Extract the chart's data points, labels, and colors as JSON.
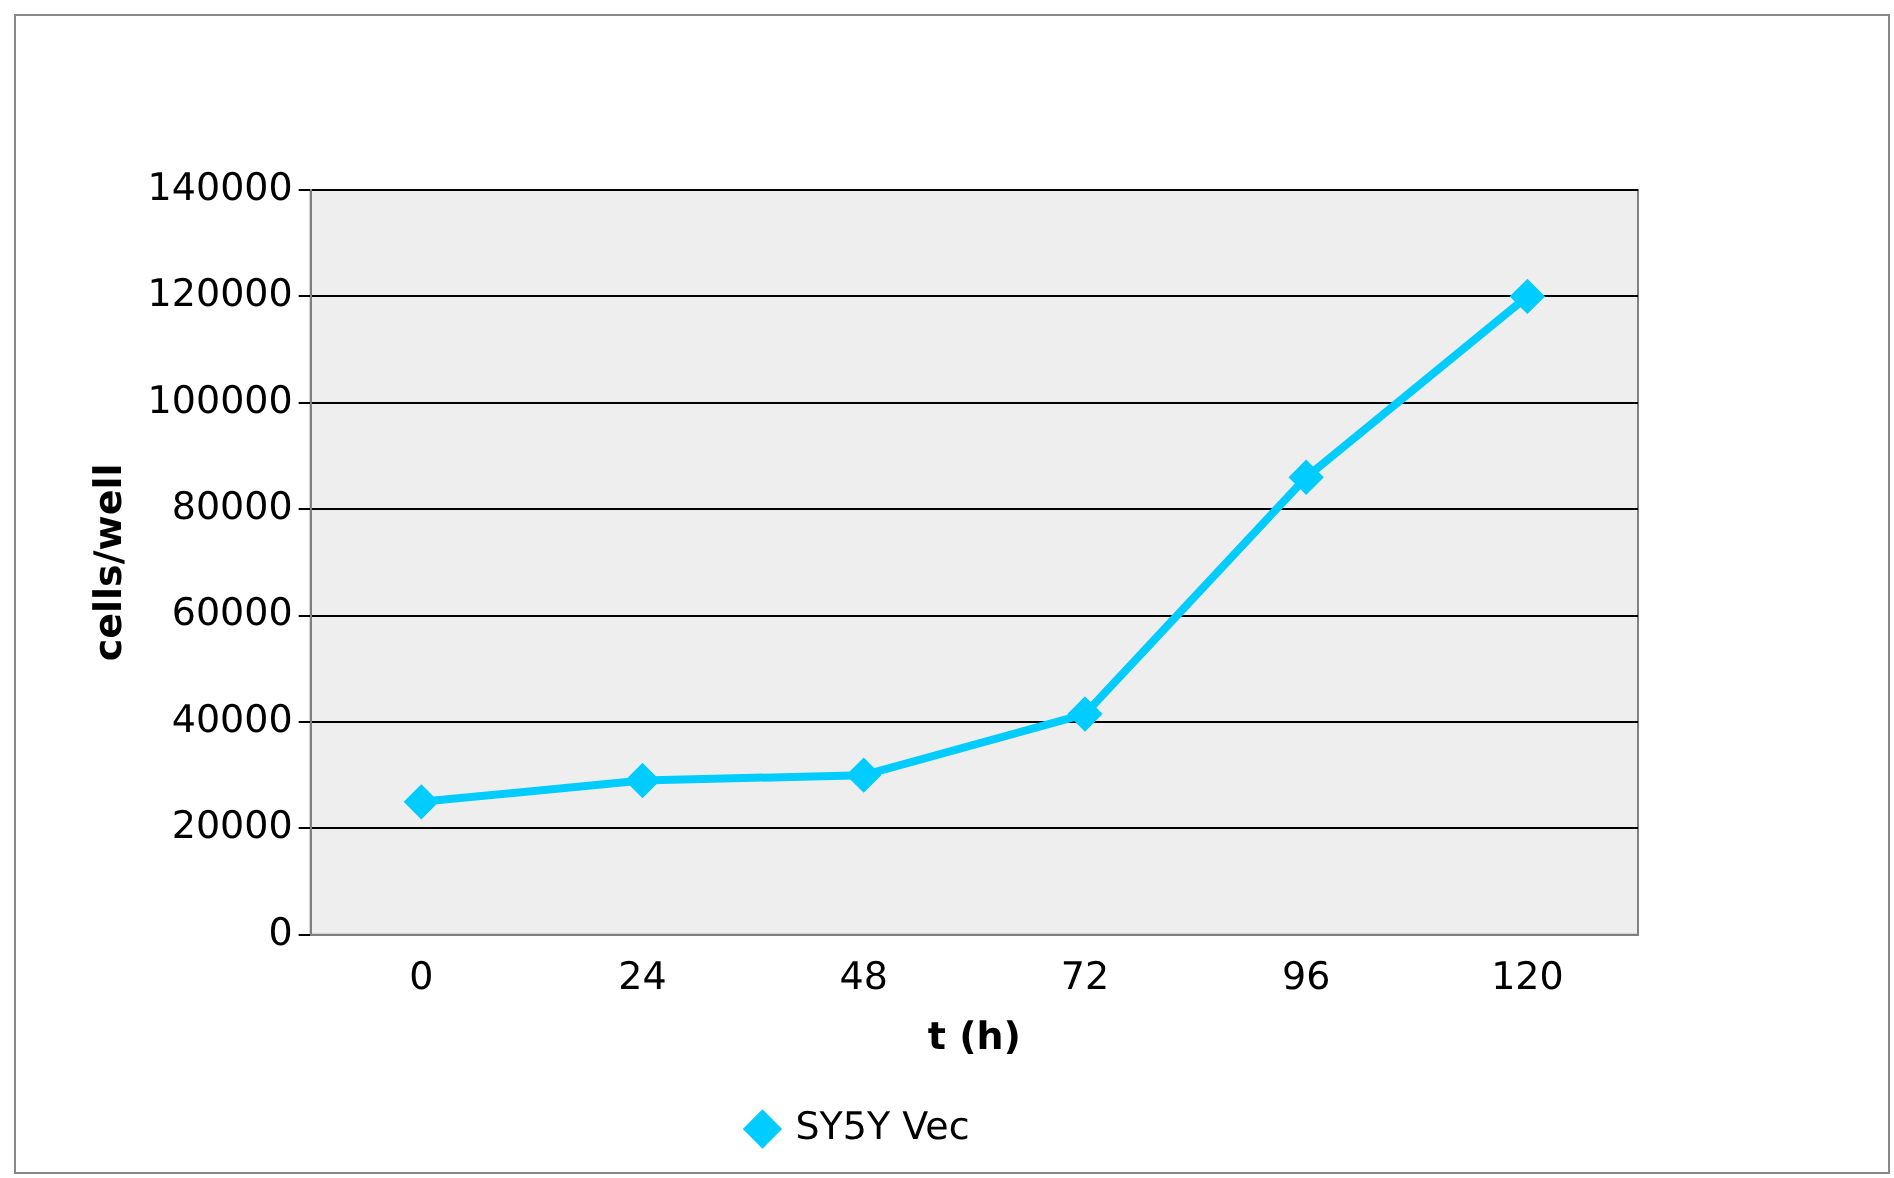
{
  "chart_data": {
    "type": "line",
    "xlabel": "t (h)",
    "ylabel": "cells/well",
    "categories": [
      "0",
      "24",
      "48",
      "72",
      "96",
      "120"
    ],
    "series": [
      {
        "name": "SY5Y Vec",
        "color": "#00ccff",
        "values": [
          25000,
          29000,
          30000,
          41500,
          86000,
          120000
        ]
      }
    ],
    "ylim": [
      0,
      140000
    ],
    "yticks": [
      0,
      20000,
      40000,
      60000,
      80000,
      100000,
      120000,
      140000
    ],
    "grid": "y",
    "legend": "bottom",
    "marker": "diamond",
    "line_style": "solid"
  }
}
